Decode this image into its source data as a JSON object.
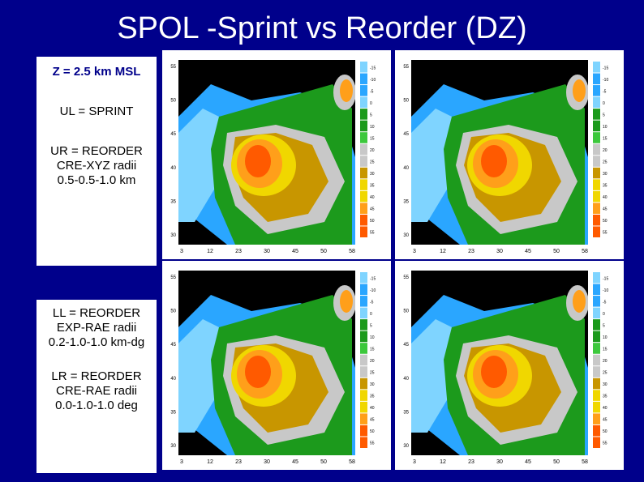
{
  "title": "SPOL -Sprint vs Reorder (DZ)",
  "z_label": "Z = 2.5 km MSL",
  "labels": {
    "ul": [
      "UL = SPRINT"
    ],
    "ur": [
      "UR = REORDER",
      "CRE-XYZ radii",
      "0.5-0.5-1.0 km"
    ],
    "ll": [
      "LL = REORDER",
      "EXP-RAE radii",
      "0.2-1.0-1.0 km-dg"
    ],
    "lr": [
      "LR = REORDER",
      "CRE-RAE radii",
      "0.0-1.0-1.0 deg"
    ]
  },
  "panels": [
    {
      "id": "ul",
      "method": "SPRINT"
    },
    {
      "id": "ur",
      "method": "CRE-XYZ"
    },
    {
      "id": "ll",
      "method": "EXP-RAE"
    },
    {
      "id": "lr",
      "method": "CRE-RAE"
    }
  ],
  "x_ticks": [
    "3",
    "12",
    "23",
    "30",
    "45",
    "50",
    "58"
  ],
  "y_ticks": [
    "30",
    "35",
    "40",
    "45",
    "50",
    "55"
  ],
  "colorbar_ticks": [
    "-15",
    "-10",
    "-5",
    "0",
    "5",
    "10",
    "15",
    "20",
    "25",
    "30",
    "35",
    "40",
    "45",
    "50",
    "55"
  ],
  "colors": {
    "background": "#00008b",
    "no_echo": "#000000",
    "light_blue": "#7fd4ff",
    "cyan": "#2aa6ff",
    "green": "#1c9a1c",
    "light_green": "#3cc83c",
    "gray": "#c8c8c8",
    "tan": "#c89600",
    "yellow": "#f0d700",
    "orange": "#ff9f1a",
    "red_orange": "#ff5a00"
  }
}
